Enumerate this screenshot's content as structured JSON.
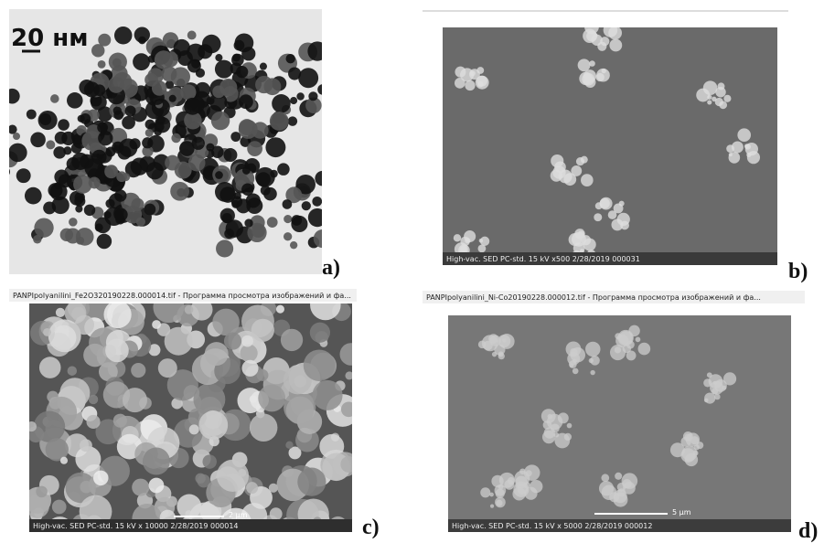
{
  "panels": [
    {
      "label": "a)",
      "scale_text": "20 нм"
    },
    {
      "label": "b)",
      "status_bar": "High-vac.  SED  PC-std.  15 kV   x500   2/28/2019  000031"
    },
    {
      "label": "c)",
      "window_title": "PANPIpolyanilini_Fe2O320190228.000014.tif - Программа просмотра изображений и фа...",
      "scale_text": "2 μm",
      "status_bar": "High-vac.  SED  PC-std.  15 kV   x 10000   2/28/2019  000014"
    },
    {
      "label": "d)",
      "window_title": "PANPIpolyanilini_Ni-Co20190228.000012.tif - Программа просмотра изображений и фа...",
      "scale_text": "5 μm",
      "status_bar": "High-vac.  SED  PC-std.  15 kV   x 5000   2/28/2019  000012"
    }
  ]
}
